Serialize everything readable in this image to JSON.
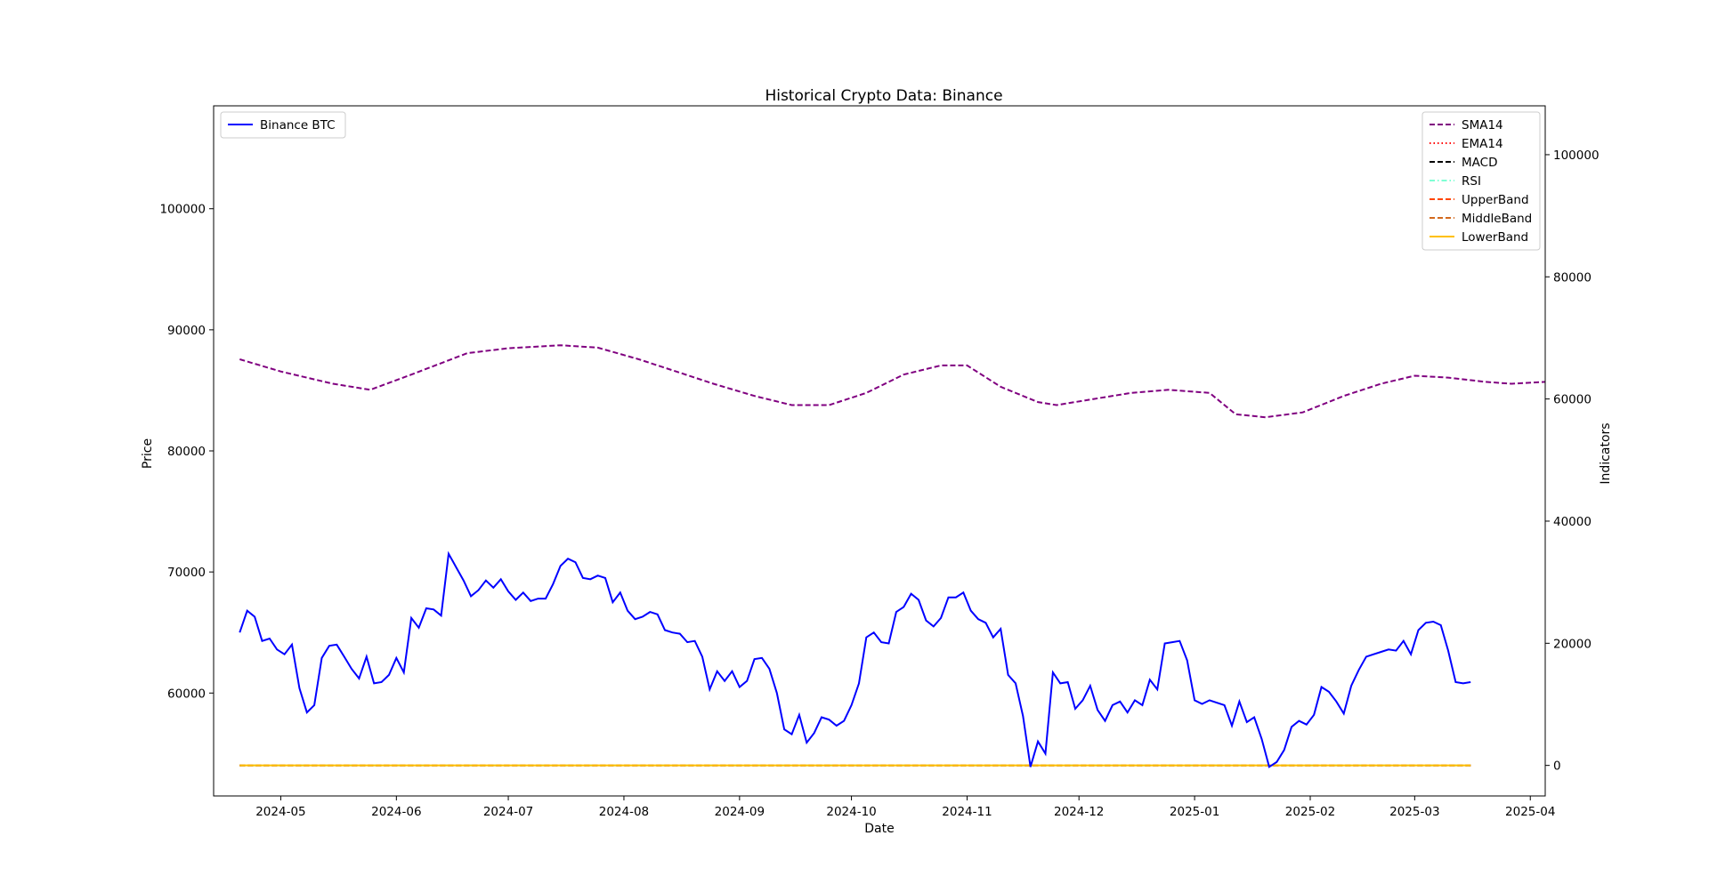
{
  "chart_data": {
    "type": "line",
    "title": "Historical Crypto Data: Binance",
    "xlabel": "Date",
    "ylabel": "Price",
    "ylabel_right": "Indicators",
    "x_ticks": [
      "2024-05",
      "2024-06",
      "2024-07",
      "2024-08",
      "2024-09",
      "2024-10",
      "2024-11",
      "2024-12",
      "2025-01",
      "2025-02",
      "2025-03",
      "2025-04"
    ],
    "ylim_left": [
      51500,
      108500
    ],
    "yticks_left": [
      60000,
      70000,
      80000,
      90000,
      100000
    ],
    "ylim_right": [
      -5000,
      108000
    ],
    "yticks_right": [
      0,
      20000,
      40000,
      60000,
      80000,
      100000
    ],
    "xlim": [
      "2024-04-13",
      "2025-04-05"
    ],
    "grid": false,
    "legend_left": {
      "placement": "upper-left",
      "entries": [
        "Binance BTC"
      ]
    },
    "legend_right": {
      "placement": "upper-right",
      "entries": [
        "SMA14",
        "EMA14",
        "MACD",
        "RSI",
        "UpperBand",
        "MiddleBand",
        "LowerBand"
      ]
    },
    "series_left": [
      {
        "name": "Binance BTC",
        "color": "#0000ff",
        "style": "solid",
        "points": [
          [
            "2024-04-20",
            65000
          ],
          [
            "2024-04-22",
            66800
          ],
          [
            "2024-04-24",
            66300
          ],
          [
            "2024-04-26",
            64300
          ],
          [
            "2024-04-28",
            64500
          ],
          [
            "2024-04-30",
            63600
          ],
          [
            "2024-05-02",
            63200
          ],
          [
            "2024-05-04",
            64000
          ],
          [
            "2024-05-06",
            60400
          ],
          [
            "2024-05-08",
            58400
          ],
          [
            "2024-05-10",
            59000
          ],
          [
            "2024-05-12",
            62900
          ],
          [
            "2024-05-14",
            63900
          ],
          [
            "2024-05-16",
            64000
          ],
          [
            "2024-05-18",
            63000
          ],
          [
            "2024-05-20",
            62000
          ],
          [
            "2024-05-22",
            61200
          ],
          [
            "2024-05-24",
            63000
          ],
          [
            "2024-05-26",
            60800
          ],
          [
            "2024-05-28",
            60900
          ],
          [
            "2024-05-30",
            61500
          ],
          [
            "2024-06-01",
            62900
          ],
          [
            "2024-06-03",
            61700
          ],
          [
            "2024-06-05",
            66200
          ],
          [
            "2024-06-07",
            65400
          ],
          [
            "2024-06-09",
            67000
          ],
          [
            "2024-06-11",
            66900
          ],
          [
            "2024-06-13",
            66400
          ],
          [
            "2024-06-15",
            71500
          ],
          [
            "2024-06-17",
            70400
          ],
          [
            "2024-06-19",
            69300
          ],
          [
            "2024-06-21",
            68000
          ],
          [
            "2024-06-23",
            68500
          ],
          [
            "2024-06-25",
            69300
          ],
          [
            "2024-06-27",
            68700
          ],
          [
            "2024-06-29",
            69400
          ],
          [
            "2024-07-01",
            68400
          ],
          [
            "2024-07-03",
            67700
          ],
          [
            "2024-07-05",
            68300
          ],
          [
            "2024-07-07",
            67600
          ],
          [
            "2024-07-09",
            67800
          ],
          [
            "2024-07-11",
            67800
          ],
          [
            "2024-07-13",
            69000
          ],
          [
            "2024-07-15",
            70500
          ],
          [
            "2024-07-17",
            71100
          ],
          [
            "2024-07-19",
            70800
          ],
          [
            "2024-07-21",
            69500
          ],
          [
            "2024-07-23",
            69400
          ],
          [
            "2024-07-25",
            69700
          ],
          [
            "2024-07-27",
            69500
          ],
          [
            "2024-07-29",
            67500
          ],
          [
            "2024-07-31",
            68300
          ],
          [
            "2024-08-02",
            66800
          ],
          [
            "2024-08-04",
            66100
          ],
          [
            "2024-08-06",
            66300
          ],
          [
            "2024-08-08",
            66700
          ],
          [
            "2024-08-10",
            66500
          ],
          [
            "2024-08-12",
            65200
          ],
          [
            "2024-08-14",
            65000
          ],
          [
            "2024-08-16",
            64900
          ],
          [
            "2024-08-18",
            64200
          ],
          [
            "2024-08-20",
            64300
          ],
          [
            "2024-08-22",
            63000
          ],
          [
            "2024-08-24",
            60300
          ],
          [
            "2024-08-26",
            61800
          ],
          [
            "2024-08-28",
            61000
          ],
          [
            "2024-08-30",
            61800
          ],
          [
            "2024-09-01",
            60500
          ],
          [
            "2024-09-03",
            61000
          ],
          [
            "2024-09-05",
            62800
          ],
          [
            "2024-09-07",
            62900
          ],
          [
            "2024-09-09",
            62000
          ],
          [
            "2024-09-11",
            60000
          ],
          [
            "2024-09-13",
            57000
          ],
          [
            "2024-09-15",
            56600
          ],
          [
            "2024-09-17",
            58200
          ],
          [
            "2024-09-19",
            55900
          ],
          [
            "2024-09-21",
            56700
          ],
          [
            "2024-09-23",
            58000
          ],
          [
            "2024-09-25",
            57800
          ],
          [
            "2024-09-27",
            57300
          ],
          [
            "2024-09-29",
            57700
          ],
          [
            "2024-10-01",
            59000
          ],
          [
            "2024-10-03",
            60800
          ],
          [
            "2024-10-05",
            64600
          ],
          [
            "2024-10-07",
            65000
          ],
          [
            "2024-10-09",
            64200
          ],
          [
            "2024-10-11",
            64100
          ],
          [
            "2024-10-13",
            66700
          ],
          [
            "2024-10-15",
            67100
          ],
          [
            "2024-10-17",
            68200
          ],
          [
            "2024-10-19",
            67700
          ],
          [
            "2024-10-21",
            66000
          ],
          [
            "2024-10-23",
            65500
          ],
          [
            "2024-10-25",
            66200
          ],
          [
            "2024-10-27",
            67900
          ],
          [
            "2024-10-29",
            67900
          ],
          [
            "2024-10-31",
            68300
          ],
          [
            "2024-11-02",
            66800
          ],
          [
            "2024-11-04",
            66100
          ],
          [
            "2024-11-06",
            65800
          ],
          [
            "2024-11-08",
            64600
          ],
          [
            "2024-11-10",
            65300
          ],
          [
            "2024-11-12",
            61500
          ],
          [
            "2024-11-14",
            60800
          ],
          [
            "2024-11-16",
            58100
          ],
          [
            "2024-11-18",
            53900
          ],
          [
            "2024-11-20",
            56000
          ],
          [
            "2024-11-22",
            55000
          ],
          [
            "2024-11-24",
            61700
          ],
          [
            "2024-11-26",
            60800
          ],
          [
            "2024-11-28",
            60900
          ],
          [
            "2024-11-30",
            58700
          ],
          [
            "2024-12-02",
            59400
          ],
          [
            "2024-12-04",
            60600
          ],
          [
            "2024-12-06",
            58600
          ],
          [
            "2024-12-08",
            57700
          ],
          [
            "2024-12-10",
            59000
          ],
          [
            "2024-12-12",
            59300
          ],
          [
            "2024-12-14",
            58400
          ],
          [
            "2024-12-16",
            59400
          ],
          [
            "2024-12-18",
            59000
          ],
          [
            "2024-12-20",
            61100
          ],
          [
            "2024-12-22",
            60300
          ],
          [
            "2024-12-24",
            64100
          ],
          [
            "2024-12-26",
            64200
          ],
          [
            "2024-12-28",
            64300
          ],
          [
            "2024-12-30",
            62700
          ],
          [
            "2025-01-01",
            59400
          ],
          [
            "2025-01-03",
            59100
          ],
          [
            "2025-01-05",
            59400
          ],
          [
            "2025-01-07",
            59200
          ],
          [
            "2025-01-09",
            59000
          ],
          [
            "2025-01-11",
            57300
          ],
          [
            "2025-01-13",
            59300
          ],
          [
            "2025-01-15",
            57600
          ],
          [
            "2025-01-17",
            58000
          ],
          [
            "2025-01-19",
            56200
          ],
          [
            "2025-01-21",
            53900
          ],
          [
            "2025-01-23",
            54300
          ],
          [
            "2025-01-25",
            55300
          ],
          [
            "2025-01-27",
            57200
          ],
          [
            "2025-01-29",
            57700
          ],
          [
            "2025-01-31",
            57400
          ],
          [
            "2025-02-02",
            58200
          ],
          [
            "2025-02-04",
            60500
          ],
          [
            "2025-02-06",
            60100
          ],
          [
            "2025-02-08",
            59300
          ],
          [
            "2025-02-10",
            58300
          ],
          [
            "2025-02-12",
            60600
          ],
          [
            "2025-02-14",
            61900
          ],
          [
            "2025-02-16",
            63000
          ],
          [
            "2025-02-18",
            63200
          ],
          [
            "2025-02-20",
            63400
          ],
          [
            "2025-02-22",
            63600
          ],
          [
            "2025-02-24",
            63500
          ],
          [
            "2025-02-26",
            64300
          ],
          [
            "2025-02-28",
            63200
          ],
          [
            "2025-03-02",
            65200
          ],
          [
            "2025-03-04",
            65800
          ],
          [
            "2025-03-06",
            65900
          ],
          [
            "2025-03-08",
            65600
          ],
          [
            "2025-03-10",
            63500
          ],
          [
            "2025-03-12",
            60900
          ],
          [
            "2025-03-14",
            60800
          ],
          [
            "2025-03-16",
            60900
          ]
        ]
      }
    ],
    "series_right": [
      {
        "name": "SMA14",
        "color": "#800080",
        "style": "dashed",
        "points": [
          [
            "2024-04-20",
            66500
          ],
          [
            "2024-05-01",
            64500
          ],
          [
            "2024-05-15",
            62500
          ],
          [
            "2024-05-25",
            61500
          ],
          [
            "2024-06-05",
            64000
          ],
          [
            "2024-06-20",
            67500
          ],
          [
            "2024-07-01",
            68300
          ],
          [
            "2024-07-15",
            68800
          ],
          [
            "2024-07-25",
            68400
          ],
          [
            "2024-08-05",
            66500
          ],
          [
            "2024-08-15",
            64500
          ],
          [
            "2024-08-25",
            62500
          ],
          [
            "2024-09-05",
            60500
          ],
          [
            "2024-09-15",
            59000
          ],
          [
            "2024-09-25",
            59000
          ],
          [
            "2024-10-05",
            61000
          ],
          [
            "2024-10-15",
            64000
          ],
          [
            "2024-10-25",
            65500
          ],
          [
            "2024-11-01",
            65500
          ],
          [
            "2024-11-10",
            62000
          ],
          [
            "2024-11-20",
            59500
          ],
          [
            "2024-11-25",
            59000
          ],
          [
            "2024-12-05",
            60000
          ],
          [
            "2024-12-15",
            61000
          ],
          [
            "2024-12-25",
            61500
          ],
          [
            "2025-01-05",
            61000
          ],
          [
            "2025-01-12",
            57500
          ],
          [
            "2025-01-20",
            57000
          ],
          [
            "2025-01-30",
            57800
          ],
          [
            "2025-02-10",
            60500
          ],
          [
            "2025-02-20",
            62500
          ],
          [
            "2025-03-01",
            63800
          ],
          [
            "2025-03-10",
            63500
          ],
          [
            "2025-03-20",
            62800
          ],
          [
            "2025-03-27",
            62500
          ],
          [
            "2025-04-05",
            62800
          ]
        ]
      },
      {
        "name": "EMA14",
        "color": "#ff0000",
        "style": "dotted",
        "points": []
      },
      {
        "name": "MACD",
        "color": "#000000",
        "style": "dashed",
        "points": []
      },
      {
        "name": "RSI",
        "color": "#7fffd4",
        "style": "dashdot",
        "points": []
      },
      {
        "name": "UpperBand",
        "color": "#ff4500",
        "style": "dashed",
        "points": []
      },
      {
        "name": "MiddleBand",
        "color": "#d2691e",
        "style": "dashed",
        "points": []
      },
      {
        "name": "LowerBand",
        "color": "#ffc000",
        "style": "solid",
        "points": []
      }
    ]
  }
}
